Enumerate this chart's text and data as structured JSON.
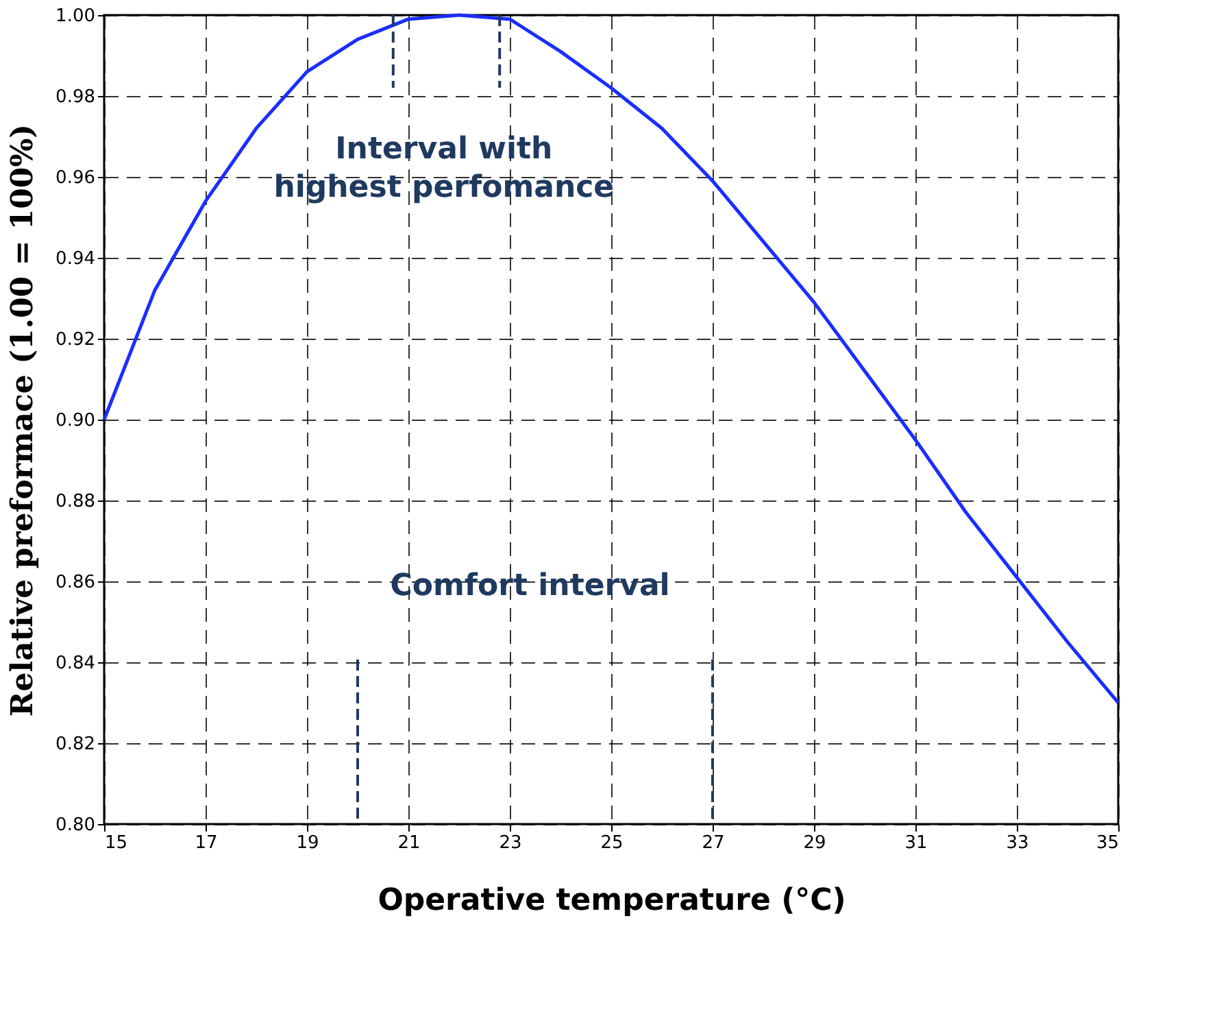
{
  "chart_data": {
    "type": "line",
    "xlabel": "Operative temperature (°C)",
    "ylabel": "Relative preformace  (1.00 = 100%)",
    "x": [
      15,
      16,
      17,
      18,
      19,
      20,
      21,
      22,
      23,
      24,
      25,
      26,
      27,
      28,
      29,
      30,
      31,
      32,
      33,
      34,
      35
    ],
    "series": [
      {
        "color": "#1a2eff",
        "values": [
          0.9,
          0.932,
          0.954,
          0.972,
          0.986,
          0.994,
          0.999,
          1.0,
          0.999,
          0.991,
          0.982,
          0.972,
          0.959,
          0.944,
          0.929,
          0.912,
          0.895,
          0.877,
          0.861,
          0.845,
          0.83
        ]
      }
    ],
    "xlim": [
      15,
      35
    ],
    "xticks": [
      15,
      17,
      19,
      21,
      23,
      25,
      27,
      29,
      31,
      33,
      35
    ],
    "ylim": [
      0.8,
      1.0
    ],
    "yticks": [
      {
        "value": 0.8,
        "label": "0.80"
      },
      {
        "value": 0.82,
        "label": "0.82"
      },
      {
        "value": 0.84,
        "label": "0.84"
      },
      {
        "value": 0.86,
        "label": "0.86"
      },
      {
        "value": 0.88,
        "label": "0.88"
      },
      {
        "value": 0.9,
        "label": "0.90"
      },
      {
        "value": 0.92,
        "label": "0.92"
      },
      {
        "value": 0.94,
        "label": "0.94"
      },
      {
        "value": 0.96,
        "label": "0.96"
      },
      {
        "value": 0.98,
        "label": "0.98"
      },
      {
        "value": 1.0,
        "label": "1.00"
      }
    ],
    "ref_lines": [
      {
        "axis": "x",
        "value": 20.7,
        "color": "#1f3a60",
        "line_style": "dashed"
      },
      {
        "axis": "x",
        "value": 22.8,
        "color": "#1f3a60",
        "line_style": "dashed"
      },
      {
        "axis": "x",
        "value": 20,
        "color": "#1f3a60",
        "line_style": "dashed"
      },
      {
        "axis": "x",
        "value": 27,
        "color": "#1f3a60",
        "line_style": "dashed"
      }
    ],
    "annotations": [
      "Interval with\nhighest perfomance",
      "Comfort interval"
    ],
    "grid": true,
    "line_style": "solid",
    "marker": "none"
  }
}
